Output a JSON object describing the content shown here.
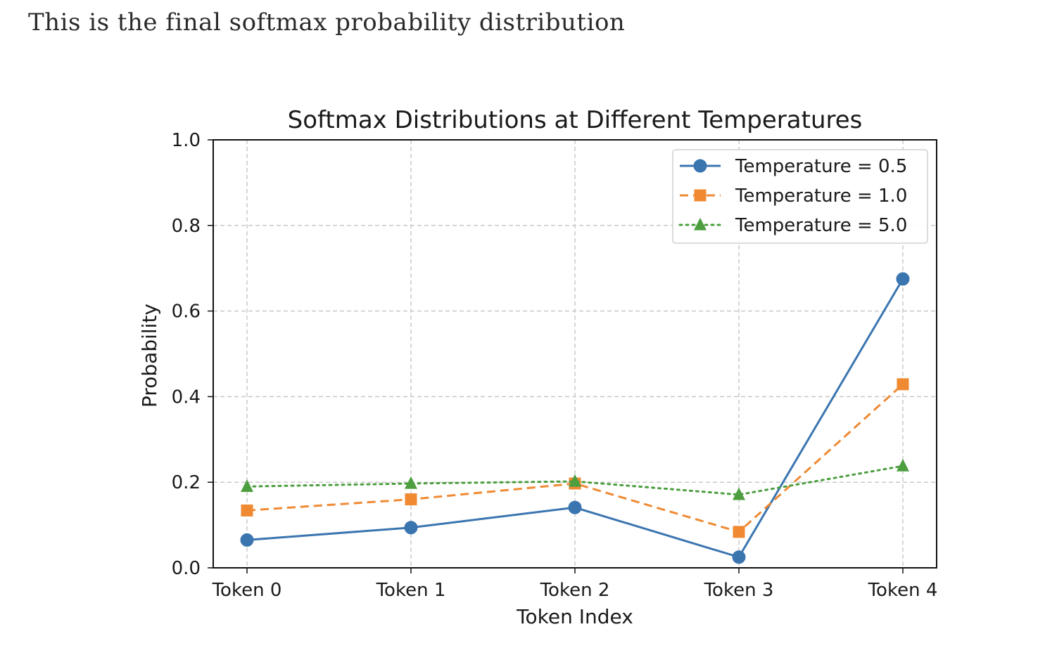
{
  "page": {
    "caption": "This is the final softmax probability distribution"
  },
  "chart_data": {
    "type": "line",
    "title": "Softmax Distributions at Different Temperatures",
    "xlabel": "Token Index",
    "ylabel": "Probability",
    "categories": [
      "Token 0",
      "Token 1",
      "Token 2",
      "Token 3",
      "Token 4"
    ],
    "ylim": [
      0.0,
      1.0
    ],
    "yticks": [
      0.0,
      0.2,
      0.4,
      0.6,
      0.8,
      1.0
    ],
    "ytick_labels": [
      "0.0",
      "0.2",
      "0.4",
      "0.6",
      "0.8",
      "1.0"
    ],
    "grid": true,
    "legend_position": "top-right",
    "series": [
      {
        "name": "Temperature = 0.5",
        "values": [
          0.065,
          0.094,
          0.141,
          0.025,
          0.675
        ],
        "color": "#3a75b0",
        "marker": "circle",
        "linestyle": "solid"
      },
      {
        "name": "Temperature = 1.0",
        "values": [
          0.134,
          0.16,
          0.197,
          0.084,
          0.429
        ],
        "color": "#ef8a33",
        "marker": "square",
        "linestyle": "dashed"
      },
      {
        "name": "Temperature = 5.0",
        "values": [
          0.19,
          0.197,
          0.202,
          0.171,
          0.238
        ],
        "color": "#4c9e3f",
        "marker": "triangle",
        "linestyle": "dotted"
      }
    ]
  }
}
